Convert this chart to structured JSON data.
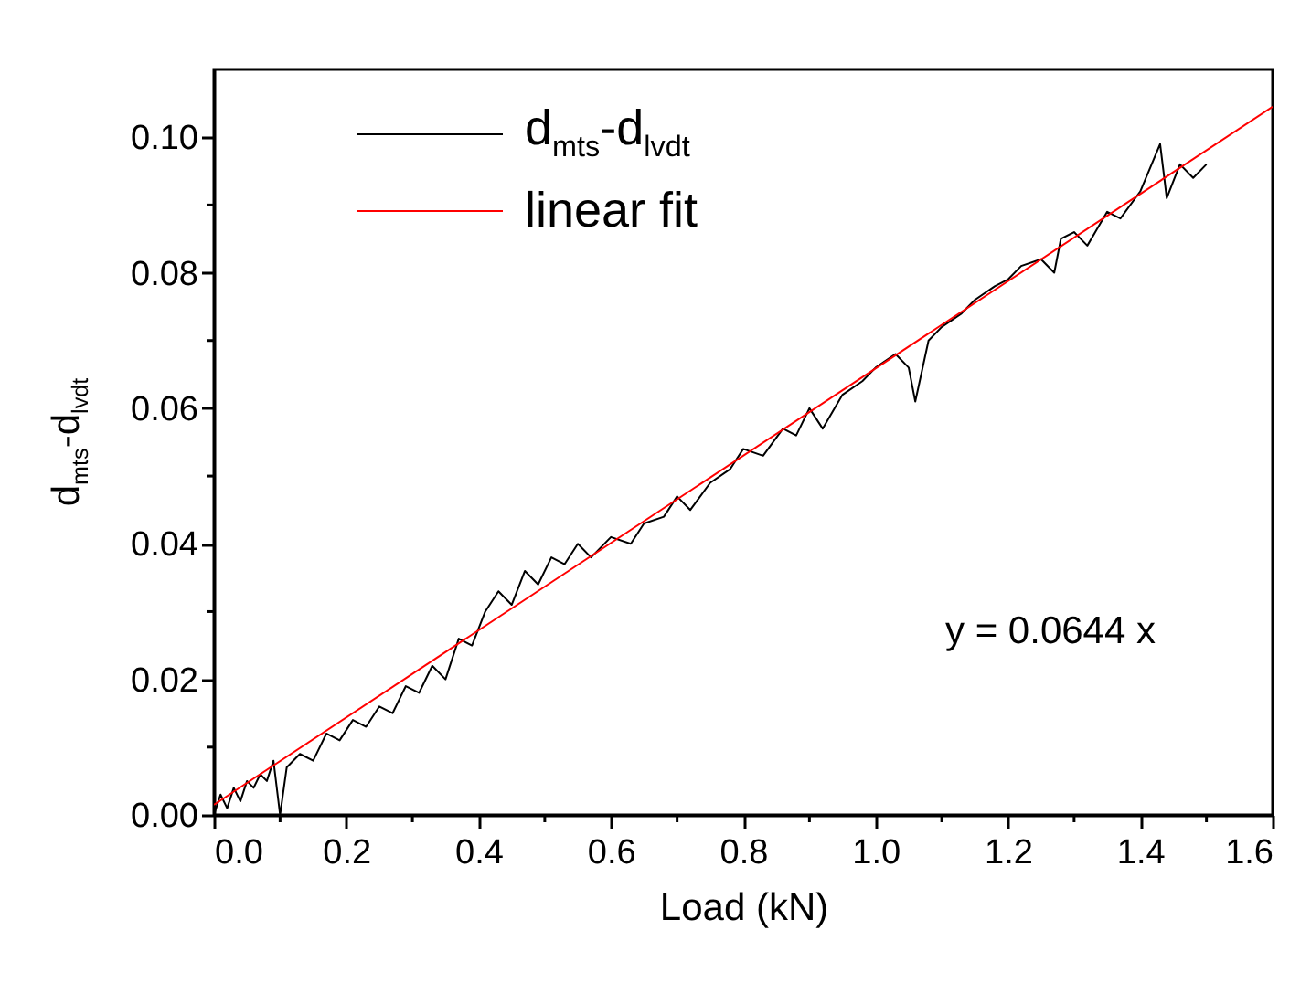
{
  "chart_data": {
    "type": "line",
    "xlabel": "Load (kN)",
    "ylabel": "d$_{mts}$-d$_{lvdt}$",
    "xlim": [
      0,
      1.6
    ],
    "ylim": [
      0,
      0.11
    ],
    "xticks": [
      {
        "value": 0,
        "label": "0.0"
      },
      0.2,
      0.4,
      0.6,
      0.8,
      {
        "value": 1,
        "label": "1.0"
      },
      1.2,
      1.4,
      1.6
    ],
    "yticks": [
      {
        "value": 0,
        "label": "0.00"
      },
      0.02,
      0.04,
      0.06,
      0.08,
      {
        "value": 0.1,
        "label": "0.10"
      }
    ],
    "legend": "top left",
    "annotations": [
      "y = 0.0644 x"
    ],
    "series": [
      {
        "name": "d$_{mts}$-d$_{lvdt}$",
        "color": "#000000",
        "x": [
          0.0,
          0.01,
          0.02,
          0.03,
          0.04,
          0.05,
          0.06,
          0.07,
          0.08,
          0.09,
          0.1,
          0.11,
          0.13,
          0.15,
          0.17,
          0.19,
          0.21,
          0.23,
          0.25,
          0.27,
          0.29,
          0.31,
          0.33,
          0.35,
          0.37,
          0.39,
          0.41,
          0.43,
          0.45,
          0.47,
          0.49,
          0.51,
          0.53,
          0.55,
          0.57,
          0.6,
          0.63,
          0.65,
          0.68,
          0.7,
          0.72,
          0.75,
          0.78,
          0.8,
          0.83,
          0.86,
          0.88,
          0.9,
          0.92,
          0.95,
          0.98,
          1.0,
          1.03,
          1.05,
          1.06,
          1.08,
          1.1,
          1.13,
          1.15,
          1.18,
          1.2,
          1.22,
          1.25,
          1.27,
          1.28,
          1.3,
          1.32,
          1.35,
          1.37,
          1.4,
          1.43,
          1.44,
          1.46,
          1.48,
          1.5
        ],
        "values": [
          0.0,
          0.003,
          0.001,
          0.004,
          0.002,
          0.005,
          0.004,
          0.006,
          0.005,
          0.008,
          0.0,
          0.007,
          0.009,
          0.008,
          0.012,
          0.011,
          0.014,
          0.013,
          0.016,
          0.015,
          0.019,
          0.018,
          0.022,
          0.02,
          0.026,
          0.025,
          0.03,
          0.033,
          0.031,
          0.036,
          0.034,
          0.038,
          0.037,
          0.04,
          0.038,
          0.041,
          0.04,
          0.043,
          0.044,
          0.047,
          0.045,
          0.049,
          0.051,
          0.054,
          0.053,
          0.057,
          0.056,
          0.06,
          0.057,
          0.062,
          0.064,
          0.066,
          0.068,
          0.066,
          0.061,
          0.07,
          0.072,
          0.074,
          0.076,
          0.078,
          0.079,
          0.081,
          0.082,
          0.08,
          0.085,
          0.086,
          0.084,
          0.089,
          0.088,
          0.092,
          0.099,
          0.091,
          0.096,
          0.094,
          0.096
        ]
      },
      {
        "name": "linear fit",
        "color": "#ff0000",
        "type": "line",
        "x": [
          0,
          1.6
        ],
        "values": [
          0.0015,
          0.1045
        ]
      }
    ]
  }
}
